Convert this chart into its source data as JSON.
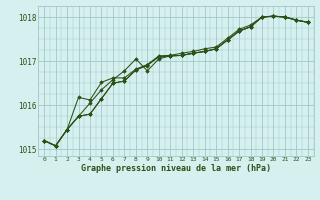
{
  "title": "Graphe pression niveau de la mer (hPa)",
  "bg_color": "#d6f0f0",
  "grid_color": "#a0c8c8",
  "line_color": "#2d5016",
  "x_hours": [
    0,
    1,
    2,
    3,
    4,
    5,
    6,
    7,
    8,
    9,
    10,
    11,
    12,
    13,
    14,
    15,
    16,
    17,
    18,
    19,
    20,
    21,
    22,
    23
  ],
  "line1": [
    1015.2,
    1015.08,
    1015.45,
    1015.75,
    1015.8,
    1016.15,
    1016.5,
    1016.55,
    1016.8,
    1016.9,
    1017.1,
    1017.12,
    1017.13,
    1017.18,
    1017.22,
    1017.28,
    1017.48,
    1017.68,
    1017.78,
    1018.0,
    1018.02,
    1018.0,
    1017.93,
    1017.88
  ],
  "line2": [
    1015.2,
    1015.08,
    1015.45,
    1015.75,
    1016.05,
    1016.35,
    1016.58,
    1016.78,
    1017.05,
    1016.78,
    1017.05,
    1017.12,
    1017.13,
    1017.18,
    1017.22,
    1017.28,
    1017.48,
    1017.68,
    1017.78,
    1018.0,
    1018.02,
    1018.0,
    1017.93,
    1017.88
  ],
  "line3": [
    1015.2,
    1015.08,
    1015.45,
    1016.18,
    1016.12,
    1016.52,
    1016.62,
    1016.62,
    1016.82,
    1016.92,
    1017.12,
    1017.13,
    1017.18,
    1017.22,
    1017.28,
    1017.32,
    1017.52,
    1017.72,
    1017.82,
    1018.0,
    1018.02,
    1018.0,
    1017.93,
    1017.88
  ],
  "line4": [
    1015.2,
    1015.08,
    1015.45,
    1015.75,
    1015.8,
    1016.15,
    1016.5,
    1016.55,
    1016.8,
    1016.92,
    1017.1,
    1017.12,
    1017.13,
    1017.18,
    1017.22,
    1017.28,
    1017.48,
    1017.68,
    1017.78,
    1018.0,
    1018.02,
    1018.0,
    1017.93,
    1017.88
  ],
  "ylim": [
    1014.85,
    1018.25
  ],
  "yticks": [
    1015,
    1016,
    1017,
    1018
  ],
  "xlim": [
    -0.5,
    23.5
  ],
  "figsize": [
    3.2,
    2.0
  ],
  "dpi": 100
}
